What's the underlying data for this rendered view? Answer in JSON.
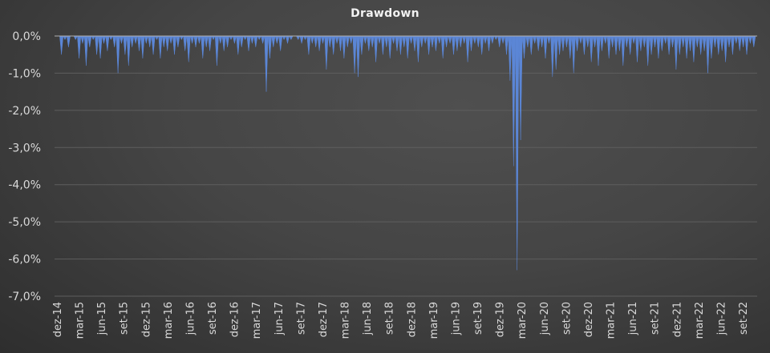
{
  "chart_data": {
    "type": "area",
    "title": "Drawdown",
    "xlabel": "",
    "ylabel": "",
    "ylim": [
      -7.0,
      0.0
    ],
    "y_ticks": [
      "0,0%",
      "-1,0%",
      "-2,0%",
      "-3,0%",
      "-4,0%",
      "-5,0%",
      "-6,0%",
      "-7,0%"
    ],
    "y_tick_values": [
      0,
      -1,
      -2,
      -3,
      -4,
      -5,
      -6,
      -7
    ],
    "x_ticks": [
      "dez-14",
      "mar-15",
      "jun-15",
      "set-15",
      "dez-15",
      "mar-16",
      "jun-16",
      "set-16",
      "dez-16",
      "mar-17",
      "jun-17",
      "set-17",
      "dez-17",
      "mar-18",
      "jun-18",
      "set-18",
      "dez-18",
      "mar-19",
      "jun-19",
      "set-19",
      "dez-19",
      "mar-20",
      "jun-20",
      "set-20",
      "dez-20",
      "mar-21",
      "jun-21",
      "set-21",
      "dez-21",
      "mar-22",
      "jun-22",
      "set-22"
    ],
    "grid": "horizontal",
    "legend": "none",
    "series_color": "#5b86d6",
    "series": [
      {
        "name": "Drawdown (%)",
        "x_quarter_index_step": 0.0833,
        "values": [
          0,
          -0.5,
          -0.1,
          -0.3,
          0,
          -0.1,
          -0.6,
          -0.2,
          -0.8,
          -0.3,
          -0.1,
          -0.5,
          -0.6,
          -0.2,
          -0.4,
          -0.1,
          -0.3,
          -1.0,
          -0.2,
          -0.5,
          -0.8,
          -0.3,
          -0.2,
          -0.4,
          -0.6,
          -0.2,
          -0.3,
          -0.5,
          -0.1,
          -0.6,
          -0.3,
          -0.4,
          -0.2,
          -0.5,
          -0.3,
          -0.1,
          -0.4,
          -0.7,
          -0.2,
          -0.3,
          -0.2,
          -0.6,
          -0.3,
          -0.4,
          -0.1,
          -0.8,
          -0.2,
          -0.4,
          -0.3,
          -0.1,
          -0.2,
          -0.5,
          -0.3,
          -0.1,
          -0.4,
          -0.2,
          -0.3,
          -0.1,
          -0.2,
          -1.5,
          -0.6,
          -0.3,
          -0.2,
          -0.4,
          -0.1,
          -0.2,
          -0.1,
          0,
          -0.1,
          -0.2,
          -0.1,
          -0.5,
          -0.2,
          -0.3,
          -0.4,
          -0.2,
          -0.9,
          -0.3,
          -0.5,
          -0.2,
          -0.4,
          -0.6,
          -0.3,
          -0.2,
          -1.0,
          -1.1,
          -0.5,
          -0.2,
          -0.4,
          -0.3,
          -0.7,
          -0.2,
          -0.5,
          -0.3,
          -0.6,
          -0.2,
          -0.4,
          -0.5,
          -0.3,
          -0.6,
          -0.2,
          -0.4,
          -0.7,
          -0.3,
          -0.2,
          -0.5,
          -0.3,
          -0.4,
          -0.2,
          -0.6,
          -0.3,
          -0.2,
          -0.5,
          -0.4,
          -0.3,
          -0.2,
          -0.7,
          -0.4,
          -0.2,
          -0.3,
          -0.5,
          -0.2,
          -0.4,
          -0.2,
          -0.1,
          -0.3,
          -0.2,
          -0.5,
          -1.2,
          -3.5,
          -6.3,
          -2.8,
          -0.6,
          -0.3,
          -0.5,
          -0.2,
          -0.4,
          -0.3,
          -0.6,
          -0.2,
          -1.1,
          -0.9,
          -0.5,
          -0.4,
          -0.3,
          -0.6,
          -1.0,
          -0.4,
          -0.2,
          -0.5,
          -0.3,
          -0.7,
          -0.3,
          -0.8,
          -0.4,
          -0.2,
          -0.6,
          -0.3,
          -0.5,
          -0.4,
          -0.8,
          -0.3,
          -0.5,
          -0.2,
          -0.7,
          -0.4,
          -0.3,
          -0.8,
          -0.5,
          -0.3,
          -0.6,
          -0.4,
          -0.2,
          -0.5,
          -0.3,
          -0.9,
          -0.5,
          -0.3,
          -0.6,
          -0.4,
          -0.7,
          -0.3,
          -0.5,
          -0.4,
          -1.0,
          -0.6,
          -0.3,
          -0.5,
          -0.4,
          -0.7,
          -0.3,
          -0.5,
          -0.2,
          -0.4,
          -0.3,
          -0.5,
          -0.2,
          -0.3
        ]
      }
    ]
  }
}
